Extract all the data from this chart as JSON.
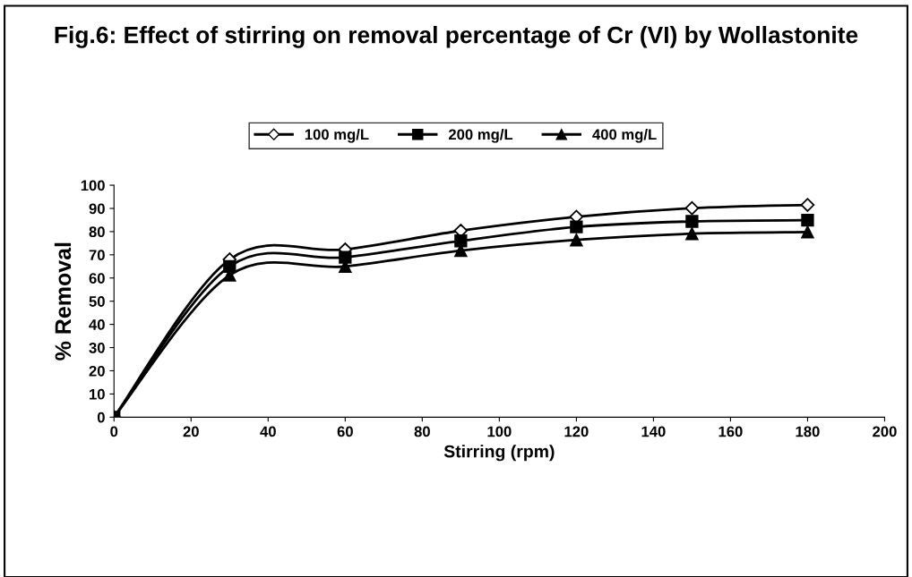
{
  "chart_data": {
    "type": "line",
    "title": "Fig.6: Effect of stirring on removal percentage of Cr (VI) by Wollastonite",
    "xlabel": "Stirring (rpm)",
    "ylabel": "% Removal",
    "x": [
      0,
      30,
      60,
      90,
      120,
      150,
      180
    ],
    "series": [
      {
        "name": "100 mg/L",
        "color": "#000000",
        "marker": "diamond",
        "values": [
          0,
          68,
          72.3,
          80.4,
          86.4,
          90.1,
          91.5
        ]
      },
      {
        "name": "200 mg/L",
        "color": "#000000",
        "marker": "square",
        "values": [
          0,
          65,
          68.9,
          76,
          82,
          84.4,
          84.9
        ]
      },
      {
        "name": "400 mg/L",
        "color": "#000000",
        "marker": "triangle",
        "values": [
          0,
          61.2,
          65,
          71.8,
          76.4,
          79.1,
          79.8
        ]
      }
    ],
    "xlim": [
      0,
      200
    ],
    "xticks": [
      0,
      20,
      40,
      60,
      80,
      100,
      120,
      140,
      160,
      180,
      200
    ],
    "ylim": [
      0,
      100
    ],
    "yticks": [
      0,
      10,
      20,
      30,
      40,
      50,
      60,
      70,
      80,
      90,
      100
    ],
    "grid": false,
    "legend": "top",
    "line_style": "solid"
  }
}
